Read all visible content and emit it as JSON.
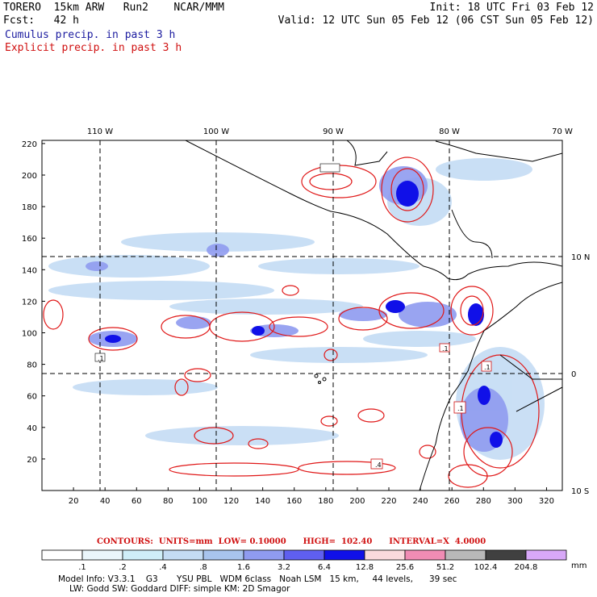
{
  "header": {
    "line1_left": "TORERO  15km ARW   Run2    NCAR/MMM",
    "line1_right": "Init: 18 UTC Fri 03 Feb 12",
    "line2_left": "Fcst:   42 h",
    "line2_right": "Valid: 12 UTC Sun 05 Feb 12 (06 CST Sun 05 Feb 12)",
    "legend_cumulus": "Cumulus precip. in past 3 h",
    "legend_explicit": "Explicit precip. in past 3 h"
  },
  "axes": {
    "top_labels": [
      "110 W",
      "100 W",
      "90 W",
      "80 W",
      "70 W"
    ],
    "right_labels": [
      "10 N",
      "0",
      "10 S"
    ],
    "left_ticks": [
      "20",
      "40",
      "60",
      "80",
      "100",
      "120",
      "140",
      "160",
      "180",
      "200",
      "220"
    ],
    "bottom_ticks": [
      "20",
      "40",
      "60",
      "80",
      "100",
      "120",
      "140",
      "160",
      "180",
      "200",
      "220",
      "240",
      "260",
      "280",
      "300",
      "320"
    ]
  },
  "contour_info": {
    "label": "CONTOURS:",
    "units": "UNITS=mm",
    "low": "LOW= 0.10000",
    "high": "HIGH=  102.40",
    "interval": "INTERVAL=X  4.0000"
  },
  "colorbar": {
    "unit": "mm",
    "labels": [
      ".1",
      ".2",
      ".4",
      ".8",
      "1.6",
      "3.2",
      "6.4",
      "12.8",
      "25.6",
      "51.2",
      "102.4",
      "204.8"
    ],
    "colors": [
      "#ffffff",
      "#eaf6fb",
      "#cfeef8",
      "#c4dcf4",
      "#a8c4ee",
      "#8f9bf0",
      "#5f5ff0",
      "#1010e8",
      "#fadadd",
      "#f08cb4",
      "#b8b8b8",
      "#404040",
      "#d8a8f8"
    ]
  },
  "model_info": {
    "line1": "Model Info: V3.3.1    G3       YSU PBL   WDM 6class   Noah LSM   15 km,     44 levels,      39 sec",
    "line2": "LW: Godd SW: Goddard DIFF: simple KM: 2D Smagor"
  },
  "grid_labels": [
    ".1",
    ".1",
    ".4",
    ".1",
    ".1"
  ]
}
